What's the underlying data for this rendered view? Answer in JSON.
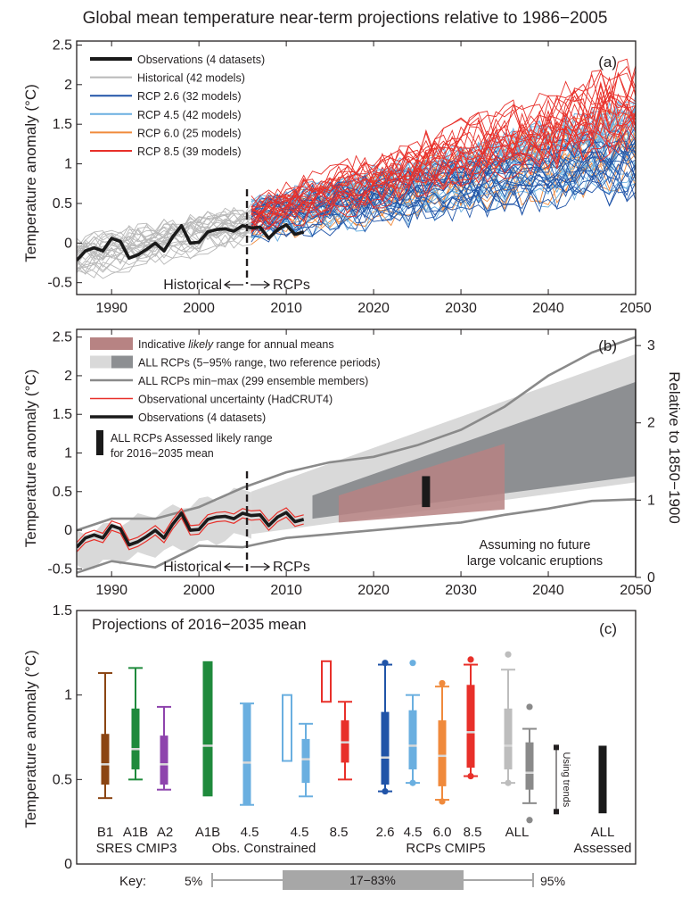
{
  "title": "Global mean temperature near-term projections relative to 1986−2005",
  "colors": {
    "obs": "#1a1a1a",
    "historical": "#b8b8b8",
    "rcp26": "#2054a8",
    "rcp45": "#6aafe0",
    "rcp60": "#f08a3c",
    "rcp85": "#e8302a",
    "likely_range": "#b78383",
    "all_rcps_light": "#d9d9d9",
    "all_rcps_dark": "#8d8f92",
    "minmax": "#8a8a8a",
    "obs_uncertainty": "#e8302a",
    "sres_b1": "#8b4513",
    "sres_a1b": "#1f8a3c",
    "sres_a2": "#8e44ad",
    "all_cmip5": "#bdbdbd",
    "all_cmip5_dark": "#8a8a8a",
    "key_box": "#a7a7a7"
  },
  "chart_data": [
    {
      "panel_label": "(a)",
      "type": "line",
      "ylabel": "Temperature anomaly (°C)",
      "xlim": [
        1986,
        2050
      ],
      "ylim": [
        -0.65,
        2.55
      ],
      "xticks": [
        1990,
        2000,
        2010,
        2020,
        2030,
        2040,
        2050
      ],
      "yticks": [
        -0.5,
        0,
        0.5,
        1,
        1.5,
        2,
        2.5
      ],
      "divider_year": 2005.5,
      "annotations": {
        "historical": "Historical",
        "rcps": "RCPs"
      },
      "legend": [
        {
          "label": "Observations (4 datasets)",
          "color_key": "obs"
        },
        {
          "label": "Historical (42 models)",
          "color_key": "historical"
        },
        {
          "label": "RCP 2.6 (32 models)",
          "color_key": "rcp26"
        },
        {
          "label": "RCP 4.5 (42 models)",
          "color_key": "rcp45"
        },
        {
          "label": "RCP 6.0 (25 models)",
          "color_key": "rcp60"
        },
        {
          "label": "RCP 8.5 (39 models)",
          "color_key": "rcp85"
        }
      ],
      "observations": {
        "x": [
          1986,
          1987,
          1988,
          1989,
          1990,
          1991,
          1992,
          1993,
          1994,
          1995,
          1996,
          1997,
          1998,
          1999,
          2000,
          2001,
          2002,
          2003,
          2004,
          2005,
          2006,
          2007,
          2008,
          2009,
          2010,
          2011,
          2012
        ],
        "y": [
          -0.22,
          -0.1,
          -0.06,
          -0.1,
          0.06,
          0.02,
          -0.19,
          -0.15,
          -0.08,
          0.0,
          -0.1,
          0.08,
          0.22,
          0.0,
          0.01,
          0.14,
          0.17,
          0.18,
          0.15,
          0.22,
          0.19,
          0.2,
          0.06,
          0.17,
          0.23,
          0.11,
          0.14
        ]
      },
      "envelopes": {
        "historical": {
          "x": [
            1986,
            2006
          ],
          "lower": [
            -0.55,
            -0.05
          ],
          "upper": [
            0.1,
            0.5
          ],
          "members": 42
        },
        "rcp26": {
          "x": [
            2006,
            2050
          ],
          "lower": [
            -0.05,
            0.45
          ],
          "upper": [
            0.55,
            1.45
          ],
          "members": 32
        },
        "rcp45": {
          "x": [
            2006,
            2050
          ],
          "lower": [
            -0.05,
            0.6
          ],
          "upper": [
            0.55,
            1.8
          ],
          "members": 42
        },
        "rcp60": {
          "x": [
            2006,
            2050
          ],
          "lower": [
            -0.05,
            0.55
          ],
          "upper": [
            0.5,
            1.75
          ],
          "members": 25
        },
        "rcp85": {
          "x": [
            2006,
            2050
          ],
          "lower": [
            -0.02,
            0.9
          ],
          "upper": [
            0.6,
            2.3
          ],
          "members": 39
        }
      }
    },
    {
      "panel_label": "(b)",
      "type": "area",
      "ylabel": "Temperature anomaly (°C)",
      "ylabel_right": "Relative to 1850−1900",
      "xlim": [
        1986,
        2050
      ],
      "ylim": [
        -0.6,
        2.6
      ],
      "xticks": [
        1990,
        2000,
        2010,
        2020,
        2030,
        2040,
        2050
      ],
      "yticks": [
        -0.5,
        0,
        0.5,
        1,
        1.5,
        2,
        2.5
      ],
      "yticks_right": [
        0,
        1,
        2,
        3
      ],
      "divider_year": 2005.5,
      "annotations": {
        "historical": "Historical",
        "rcps": "RCPs",
        "volcanic_line1": "Assuming no future",
        "volcanic_line2": "large volcanic eruptions"
      },
      "legend": [
        {
          "label_pre": "Indicative ",
          "label_italic": "likely",
          "label_post": " range for annual means",
          "color_key": "likely_range",
          "kind": "box"
        },
        {
          "label_pre": "ALL RCPs (5−95% range, two reference periods)",
          "label_italic": "",
          "label_post": "",
          "color_key": "all_rcps_dark",
          "kind": "twobox"
        },
        {
          "label_pre": "ALL RCPs min−max (299 ensemble members)",
          "label_italic": "",
          "label_post": "",
          "color_key": "minmax",
          "kind": "line"
        },
        {
          "label_pre": "Observational uncertainty (HadCRUT4)",
          "label_italic": "",
          "label_post": "",
          "color_key": "obs_uncertainty",
          "kind": "thinline"
        },
        {
          "label_pre": "Observations (4 datasets)",
          "label_italic": "",
          "label_post": "",
          "color_key": "obs",
          "kind": "thickline"
        }
      ],
      "assessed_legend_line1": "ALL RCPs Assessed likely range",
      "assessed_legend_line2": "for 2016−2035 mean",
      "likely_range_polygon": {
        "x": [
          2016,
          2035
        ],
        "lower": [
          0.1,
          0.27
        ],
        "upper": [
          0.45,
          1.12
        ]
      },
      "assessed_bar": {
        "x": 2026,
        "lower": 0.3,
        "upper": 0.7
      },
      "light_band": {
        "x": [
          2006,
          2050
        ],
        "lower": [
          -0.05,
          0.62
        ],
        "upper": [
          0.5,
          2.28
        ]
      },
      "dark_band": {
        "x": [
          2013,
          2050
        ],
        "lower": [
          0.15,
          0.7
        ],
        "upper": [
          0.45,
          1.92
        ]
      },
      "minmax": {
        "x": [
          1986,
          1990,
          1995,
          2000,
          2005,
          2010,
          2015,
          2020,
          2025,
          2030,
          2035,
          2040,
          2045,
          2050
        ],
        "upper": [
          0.0,
          0.15,
          0.15,
          0.3,
          0.55,
          0.75,
          0.88,
          0.95,
          1.1,
          1.3,
          1.6,
          2.0,
          2.3,
          2.5
        ],
        "lower": [
          -0.55,
          -0.4,
          -0.48,
          -0.2,
          -0.22,
          -0.1,
          -0.05,
          0.0,
          0.05,
          0.1,
          0.2,
          0.28,
          0.38,
          0.4
        ]
      },
      "historical_band": {
        "x": [
          1986,
          2006
        ],
        "lower": [
          -0.5,
          -0.05
        ],
        "upper": [
          -0.05,
          0.55
        ]
      }
    },
    {
      "panel_label": "(c)",
      "type": "box",
      "subtitle": "Projections of 2016−2035 mean",
      "ylabel": "Temperature anomaly (°C)",
      "ylim": [
        0,
        1.5
      ],
      "yticks": [
        0,
        0.5,
        1,
        1.5
      ],
      "groups": [
        {
          "label": "SRES CMIP3"
        },
        {
          "label": "Obs. Constrained"
        },
        {
          "label": "RCPs CMIP5"
        },
        {
          "label": "Assessed"
        }
      ],
      "boxes": [
        {
          "category": "B1",
          "color_key": "sres_b1",
          "whisker": [
            0.39,
            1.13
          ],
          "box": [
            0.47,
            0.77
          ],
          "median": 0.59,
          "style": "box"
        },
        {
          "category": "A1B",
          "color_key": "sres_a1b",
          "whisker": [
            0.5,
            1.16
          ],
          "box": [
            0.56,
            0.92
          ],
          "median": 0.68,
          "style": "box"
        },
        {
          "category": "A2",
          "color_key": "sres_a2",
          "whisker": [
            0.44,
            0.93
          ],
          "box": [
            0.47,
            0.76
          ],
          "median": 0.59,
          "style": "box"
        },
        {
          "category": "A1B",
          "color_key": "sres_a1b",
          "whisker": null,
          "box": [
            0.4,
            1.2
          ],
          "median": 0.7,
          "style": "wide"
        },
        {
          "category": "4.5",
          "color_key": "rcp45",
          "whisker": null,
          "box": [
            0.35,
            0.95
          ],
          "median": 0.6,
          "style": "thin"
        },
        {
          "category": "4.5",
          "color_key": "rcp45",
          "whisker": [
            0.4,
            0.83
          ],
          "box": [
            0.48,
            0.74
          ],
          "median": 0.62,
          "style": "pair",
          "outline": [
            0.61,
            1.0
          ]
        },
        {
          "category": "8.5",
          "color_key": "rcp85",
          "whisker": [
            0.5,
            0.96
          ],
          "box": [
            0.6,
            0.85
          ],
          "median": 0.72,
          "style": "pair",
          "outline": [
            0.96,
            1.2
          ]
        },
        {
          "category": "2.6",
          "color_key": "rcp26",
          "whisker": [
            0.43,
            1.18
          ],
          "box": [
            0.47,
            0.9
          ],
          "median": 0.63,
          "style": "box",
          "dots": [
            0.43,
            1.19
          ]
        },
        {
          "category": "4.5",
          "color_key": "rcp45",
          "whisker": [
            0.48,
            1.0
          ],
          "box": [
            0.56,
            0.91
          ],
          "median": 0.7,
          "style": "box",
          "dots": [
            0.48,
            1.19
          ]
        },
        {
          "category": "6.0",
          "color_key": "rcp60",
          "whisker": [
            0.38,
            1.05
          ],
          "box": [
            0.46,
            0.85
          ],
          "median": 0.64,
          "style": "box",
          "dots": [
            0.37,
            1.07
          ]
        },
        {
          "category": "8.5",
          "color_key": "rcp85",
          "whisker": [
            0.52,
            1.18
          ],
          "box": [
            0.57,
            1.06
          ],
          "median": 0.78,
          "style": "box",
          "dots": [
            0.52,
            1.21
          ]
        },
        {
          "category": "ALL",
          "color_key": "all_cmip5",
          "whisker": [
            0.48,
            1.15
          ],
          "box": [
            0.56,
            0.92
          ],
          "median": 0.7,
          "style": "box",
          "dots": [
            0.48,
            1.24
          ],
          "dark": {
            "whisker": [
              0.36,
              0.8
            ],
            "box": [
              0.44,
              0.72
            ],
            "median": 0.54,
            "dots": [
              0.26,
              0.93
            ]
          }
        },
        {
          "category": "ALL",
          "color_key": "obs",
          "whisker": null,
          "box": [
            0.3,
            0.7
          ],
          "median": null,
          "style": "assessed"
        }
      ],
      "using_trends": {
        "label": "Using trends",
        "range": [
          0.31,
          0.69
        ]
      },
      "key": {
        "label": "Key:",
        "low_label": "5%",
        "box_label": "17−83%",
        "high_label": "95%"
      }
    }
  ]
}
